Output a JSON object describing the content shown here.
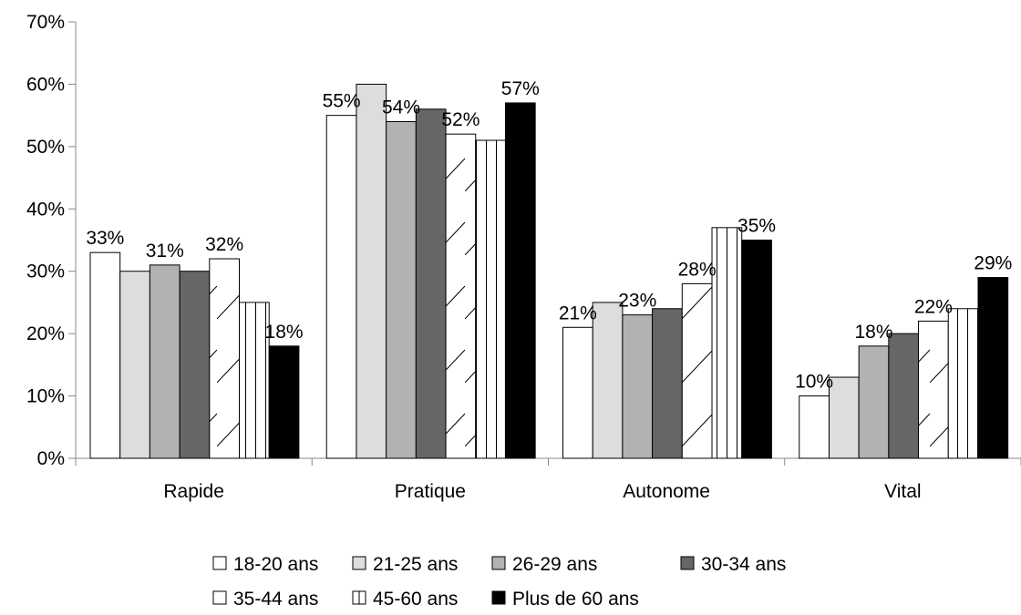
{
  "chart_data": {
    "type": "bar",
    "title": "",
    "xlabel": "",
    "ylabel": "",
    "ylim": [
      0,
      70
    ],
    "y_ticks": [
      "0%",
      "10%",
      "20%",
      "30%",
      "40%",
      "50%",
      "60%",
      "70%"
    ],
    "grid": false,
    "legend_position": "bottom",
    "categories": [
      "Rapide",
      "Pratique",
      "Autonome",
      "Vital"
    ],
    "series": [
      {
        "name": "18-20 ans",
        "values": [
          33,
          55,
          21,
          10
        ],
        "labels": [
          "33%",
          "55%",
          "21%",
          "10%"
        ],
        "fill": "#ffffff",
        "pattern": "none"
      },
      {
        "name": "21-25 ans",
        "values": [
          30,
          60,
          25,
          13
        ],
        "labels": [
          "",
          "",
          "",
          ""
        ],
        "fill": "#dddddd",
        "pattern": "none"
      },
      {
        "name": "26-29 ans",
        "values": [
          31,
          54,
          23,
          18
        ],
        "labels": [
          "31%",
          "54%",
          "23%",
          "18%"
        ],
        "fill": "#b2b2b2",
        "pattern": "none"
      },
      {
        "name": "30-34 ans",
        "values": [
          30,
          56,
          24,
          20
        ],
        "labels": [
          "",
          "",
          "",
          ""
        ],
        "fill": "#666666",
        "pattern": "none"
      },
      {
        "name": "35-44 ans",
        "values": [
          32,
          52,
          28,
          22
        ],
        "labels": [
          "32%",
          "52%",
          "28%",
          "22%"
        ],
        "fill": "#ffffff",
        "pattern": "diagonal"
      },
      {
        "name": "45-60 ans",
        "values": [
          25,
          51,
          37,
          24
        ],
        "labels": [
          "",
          "",
          "",
          ""
        ],
        "fill": "#ffffff",
        "pattern": "vertical"
      },
      {
        "name": "Plus de 60 ans",
        "values": [
          18,
          57,
          35,
          29
        ],
        "labels": [
          "18%",
          "57%",
          "35%",
          "29%"
        ],
        "fill": "#000000",
        "pattern": "none"
      }
    ]
  }
}
